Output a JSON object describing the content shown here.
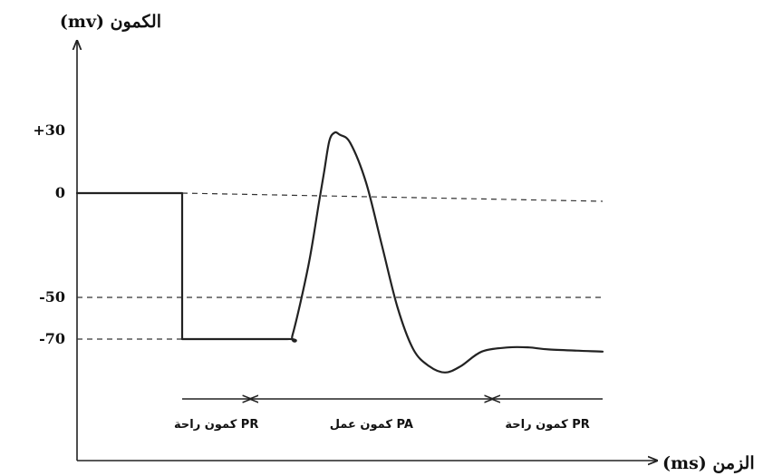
{
  "chart_data": {
    "type": "line",
    "ylabel": "(mv) الكمون",
    "xlabel": "(ms) الزمن",
    "y_ticks": [
      "+30",
      "0",
      "-50",
      "-70"
    ],
    "y_tick_values": [
      30,
      0,
      -50,
      -70
    ],
    "ylim": [
      -100,
      65
    ],
    "xlim": [
      0,
      100
    ],
    "grid": false,
    "reference_lines": [
      {
        "y": 0,
        "style": "dashed"
      },
      {
        "y": -50,
        "style": "dashed"
      },
      {
        "y": -70,
        "style": "dashed"
      }
    ],
    "series": [
      {
        "x": [
          0,
          20,
          20,
          40,
          41,
          44,
          46,
          47,
          48,
          49,
          50,
          52,
          55,
          58,
          61,
          64,
          67,
          70,
          73,
          77,
          82,
          86,
          90,
          100
        ],
        "y": [
          0,
          0,
          -70,
          -70,
          -68,
          -35,
          -5,
          10,
          25,
          29,
          28,
          24,
          5,
          -25,
          -55,
          -75,
          -83,
          -86,
          -83,
          -76,
          -74,
          -74,
          -75,
          -76
        ]
      }
    ],
    "segments": [
      {
        "label": "كمون راحة PR",
        "x_start": 20,
        "x_end": 33
      },
      {
        "label": "كمون عمل PA",
        "x_start": 33,
        "x_end": 79
      },
      {
        "label": "كمون راحة PR",
        "x_start": 79,
        "x_end": 100
      }
    ]
  }
}
